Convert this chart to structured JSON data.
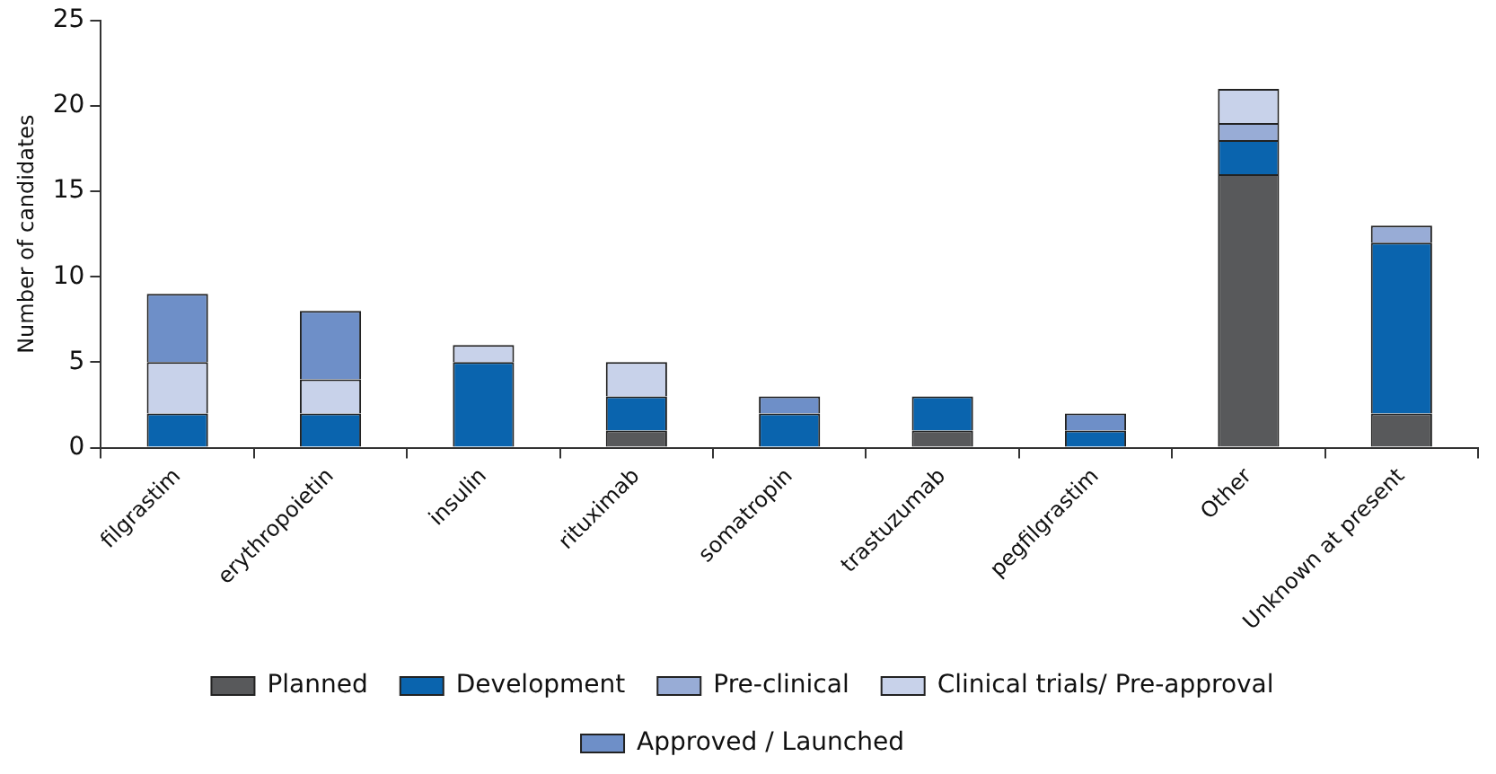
{
  "chart_data": {
    "type": "bar",
    "stacked": true,
    "ylabel": "Number of candidates",
    "categories": [
      "filgrastim",
      "erythropoietin",
      "insulin",
      "rituximab",
      "somatropin",
      "trastuzumab",
      "pegfilgrastim",
      "Other",
      "Unknown at present"
    ],
    "series": [
      {
        "name": "Planned",
        "color": "#58595b",
        "values": [
          0,
          0,
          0,
          1,
          0,
          1,
          0,
          16,
          2
        ]
      },
      {
        "name": "Development",
        "color": "#0a64ae",
        "values": [
          2,
          2,
          5,
          2,
          2,
          2,
          1,
          2,
          10
        ]
      },
      {
        "name": "Pre-clinical",
        "color": "#98acd6",
        "values": [
          0,
          0,
          0,
          0,
          0,
          0,
          0,
          1,
          1
        ]
      },
      {
        "name": "Clinical trials/ Pre-approval",
        "color": "#c8d2ea",
        "values": [
          3,
          2,
          1,
          2,
          0,
          0,
          0,
          2,
          0
        ]
      },
      {
        "name": "Approved / Launched",
        "color": "#6e8fc8",
        "values": [
          4,
          4,
          0,
          0,
          1,
          0,
          1,
          0,
          0
        ]
      }
    ],
    "ylim": [
      0,
      25
    ],
    "yticks": [
      0,
      5,
      10,
      15,
      20,
      25
    ],
    "grid": false,
    "legend": "bottom"
  }
}
